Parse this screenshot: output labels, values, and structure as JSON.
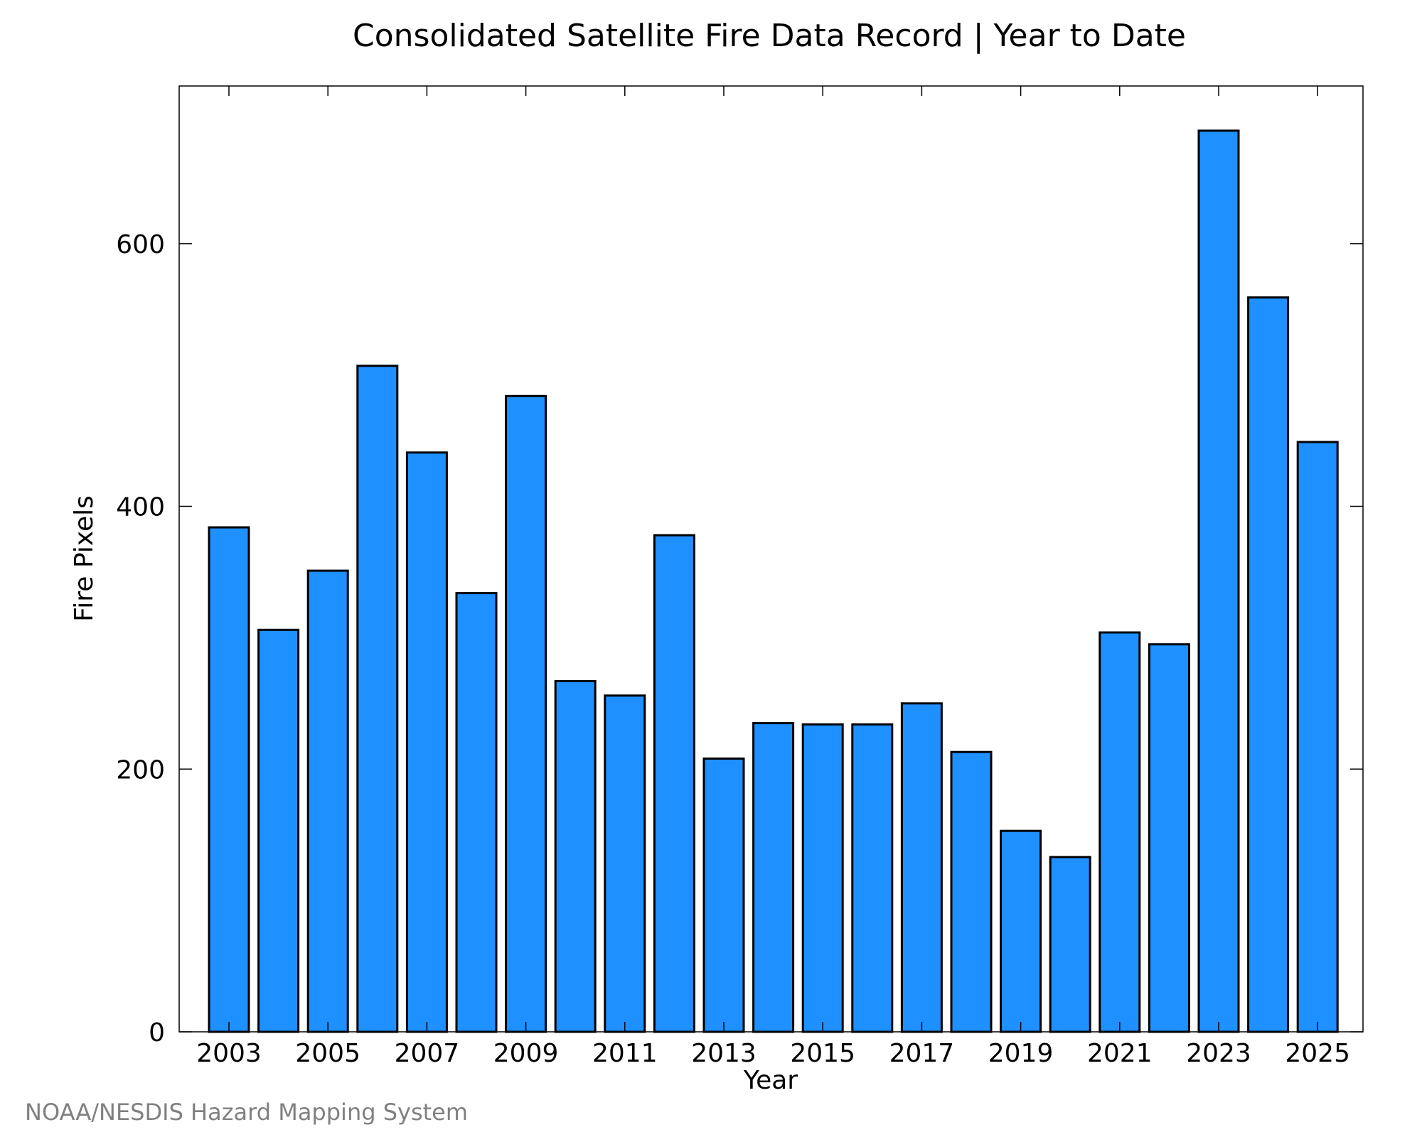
{
  "credit": "NOAA/NESDIS Hazard Mapping System",
  "chart_data": {
    "type": "bar",
    "title": "Consolidated Satellite Fire Data Record | Year to Date",
    "xlabel": "Year",
    "ylabel": "Fire Pixels",
    "categories": [
      2003,
      2004,
      2005,
      2006,
      2007,
      2008,
      2009,
      2010,
      2011,
      2012,
      2013,
      2014,
      2015,
      2016,
      2017,
      2018,
      2019,
      2020,
      2021,
      2022,
      2023,
      2024,
      2025
    ],
    "values": [
      384,
      306,
      351,
      507,
      441,
      334,
      484,
      267,
      256,
      378,
      208,
      235,
      234,
      234,
      250,
      213,
      153,
      133,
      304,
      295,
      686,
      559,
      449
    ],
    "x_tick_labels": [
      "2003",
      "2005",
      "2007",
      "2009",
      "2011",
      "2013",
      "2015",
      "2017",
      "2019",
      "2021",
      "2023",
      "2025"
    ],
    "y_ticks": [
      0,
      200,
      400,
      600
    ],
    "ylim": [
      0,
      720
    ],
    "bar_color": "#1e90ff",
    "bar_edge_color": "#000000",
    "grid": false,
    "legend": "none"
  }
}
